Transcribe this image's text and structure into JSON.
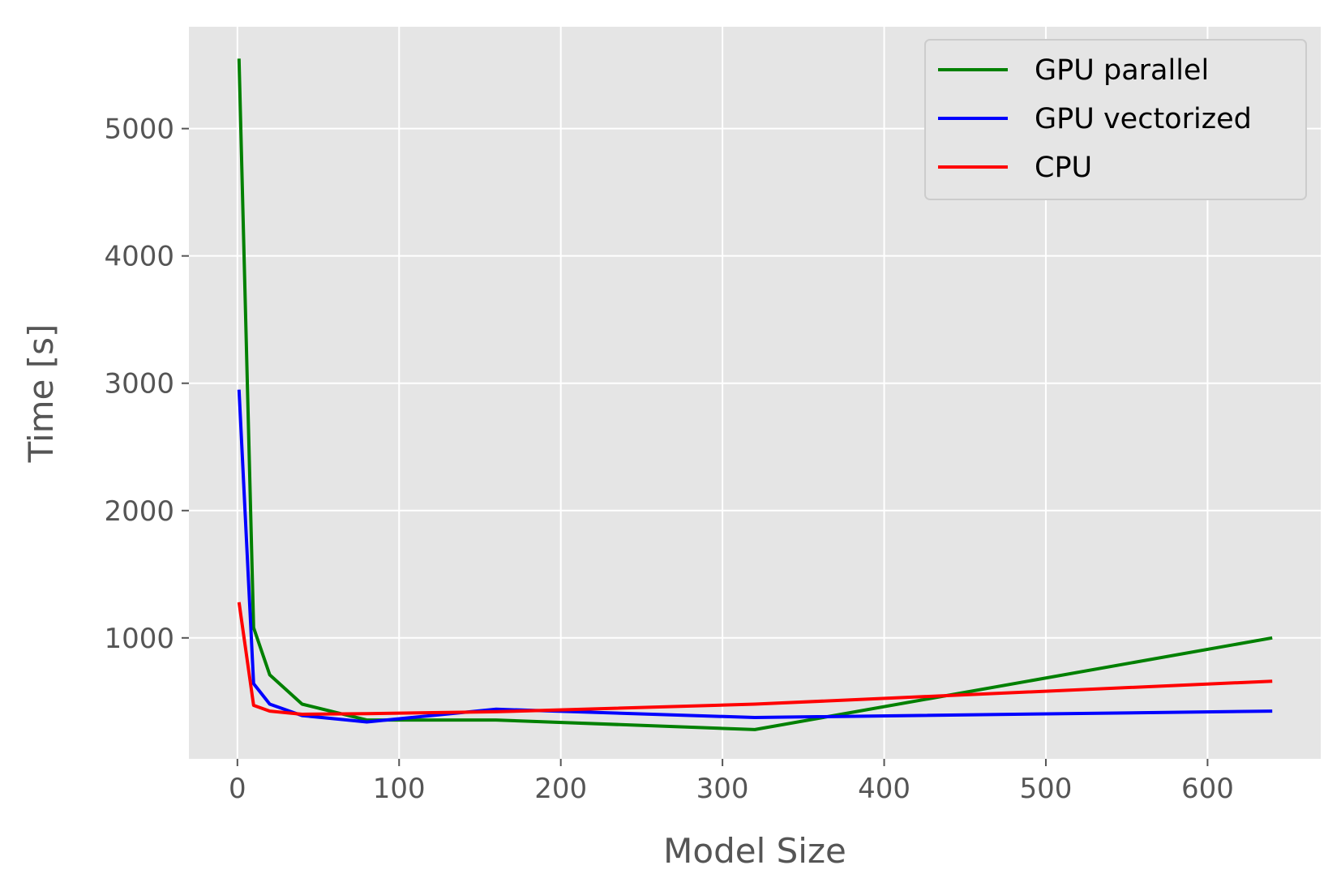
{
  "chart_data": {
    "type": "line",
    "xlabel": "Model Size",
    "ylabel": "Time [s]",
    "xlim": [
      -30,
      670
    ],
    "ylim": [
      50,
      5800
    ],
    "xticks": [
      0,
      100,
      200,
      300,
      400,
      500,
      600
    ],
    "yticks": [
      1000,
      2000,
      3000,
      4000,
      5000
    ],
    "grid": true,
    "legend_position": "top-right",
    "x": [
      1,
      10,
      20,
      40,
      80,
      160,
      320,
      640
    ],
    "series": [
      {
        "name": "GPU parallel",
        "color": "#008000",
        "values": [
          5550,
          1080,
          710,
          480,
          355,
          355,
          280,
          1000
        ]
      },
      {
        "name": "GPU vectorized",
        "color": "#0000ff",
        "values": [
          2950,
          640,
          480,
          390,
          340,
          440,
          375,
          425
        ]
      },
      {
        "name": "CPU",
        "color": "#ff0000",
        "values": [
          1280,
          470,
          425,
          400,
          405,
          420,
          480,
          660
        ]
      }
    ]
  }
}
